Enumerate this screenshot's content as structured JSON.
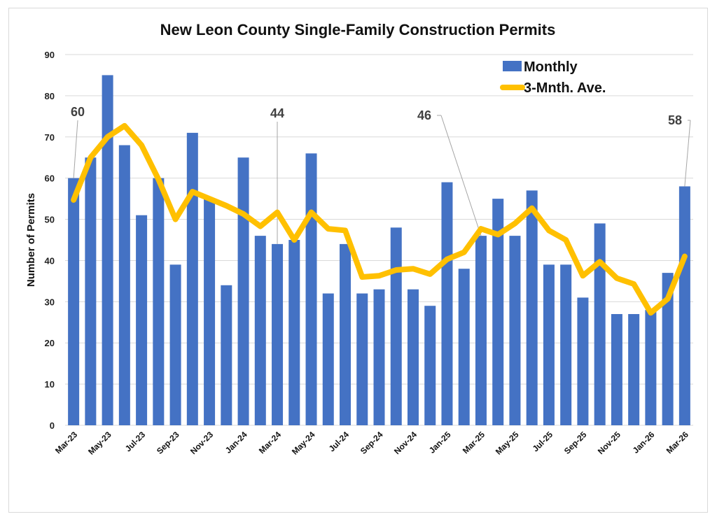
{
  "chart_data": {
    "type": "bar",
    "title": "New Leon County Single-Family Construction Permits",
    "xlabel": "",
    "ylabel": "Number of Permits",
    "ylim": [
      0,
      90
    ],
    "yticks": [
      0,
      10,
      20,
      30,
      40,
      50,
      60,
      70,
      80,
      90
    ],
    "grid": true,
    "legend_position": "top-right",
    "categories": [
      "Mar-23",
      "Apr-23",
      "May-23",
      "Jun-23",
      "Jul-23",
      "Aug-23",
      "Sep-23",
      "Oct-23",
      "Nov-23",
      "Dec-23",
      "Jan-24",
      "Feb-24",
      "Mar-24",
      "Apr-24",
      "May-24",
      "Jun-24",
      "Jul-24",
      "Aug-24",
      "Sep-24",
      "Oct-24",
      "Nov-24",
      "Dec-24",
      "Jan-25",
      "Feb-25",
      "Mar-25",
      "Apr-25",
      "May-25",
      "Jun-25",
      "Jul-25",
      "Aug-25",
      "Sep-25",
      "Oct-25",
      "Nov-25",
      "Dec-25",
      "Jan-26",
      "Feb-26",
      "Mar-26"
    ],
    "tick_labels_shown": [
      "Mar-23",
      "May-23",
      "Jul-23",
      "Sep-23",
      "Nov-23",
      "Jan-24",
      "Mar-24",
      "May-24",
      "Jul-24",
      "Sep-24",
      "Nov-24",
      "Jan-25",
      "Mar-25",
      "May-25",
      "Jul-25",
      "Sep-25",
      "Nov-25",
      "Jan-26",
      "Mar-26"
    ],
    "series": [
      {
        "name": "Monthly",
        "type": "bar",
        "color": "#4472C4",
        "values": [
          60,
          65,
          85,
          68,
          51,
          60,
          39,
          71,
          55,
          34,
          65,
          46,
          44,
          45,
          66,
          32,
          44,
          32,
          33,
          48,
          33,
          29,
          59,
          38,
          46,
          55,
          46,
          57,
          39,
          39,
          31,
          49,
          27,
          27,
          28,
          37,
          58
        ]
      },
      {
        "name": "3-Mnth. Ave.",
        "type": "line",
        "color": "#FFC000",
        "values": [
          54.7,
          65,
          70,
          72.7,
          68,
          59.7,
          50,
          56.7,
          55,
          53.3,
          51.3,
          48.3,
          51.7,
          45,
          51.7,
          47.7,
          47.3,
          36,
          36.3,
          37.7,
          38,
          36.7,
          40.3,
          42,
          47.7,
          46.3,
          49,
          52.7,
          47.3,
          45,
          36.3,
          39.7,
          35.7,
          34.3,
          27.3,
          30.7,
          41
        ]
      }
    ],
    "annotations": [
      {
        "label": "60",
        "category": "Mar-23",
        "value": 60
      },
      {
        "label": "44",
        "category": "Mar-24",
        "value": 44
      },
      {
        "label": "46",
        "category": "Mar-25",
        "value": 46
      },
      {
        "label": "58",
        "category": "Mar-26",
        "value": 58
      }
    ]
  }
}
